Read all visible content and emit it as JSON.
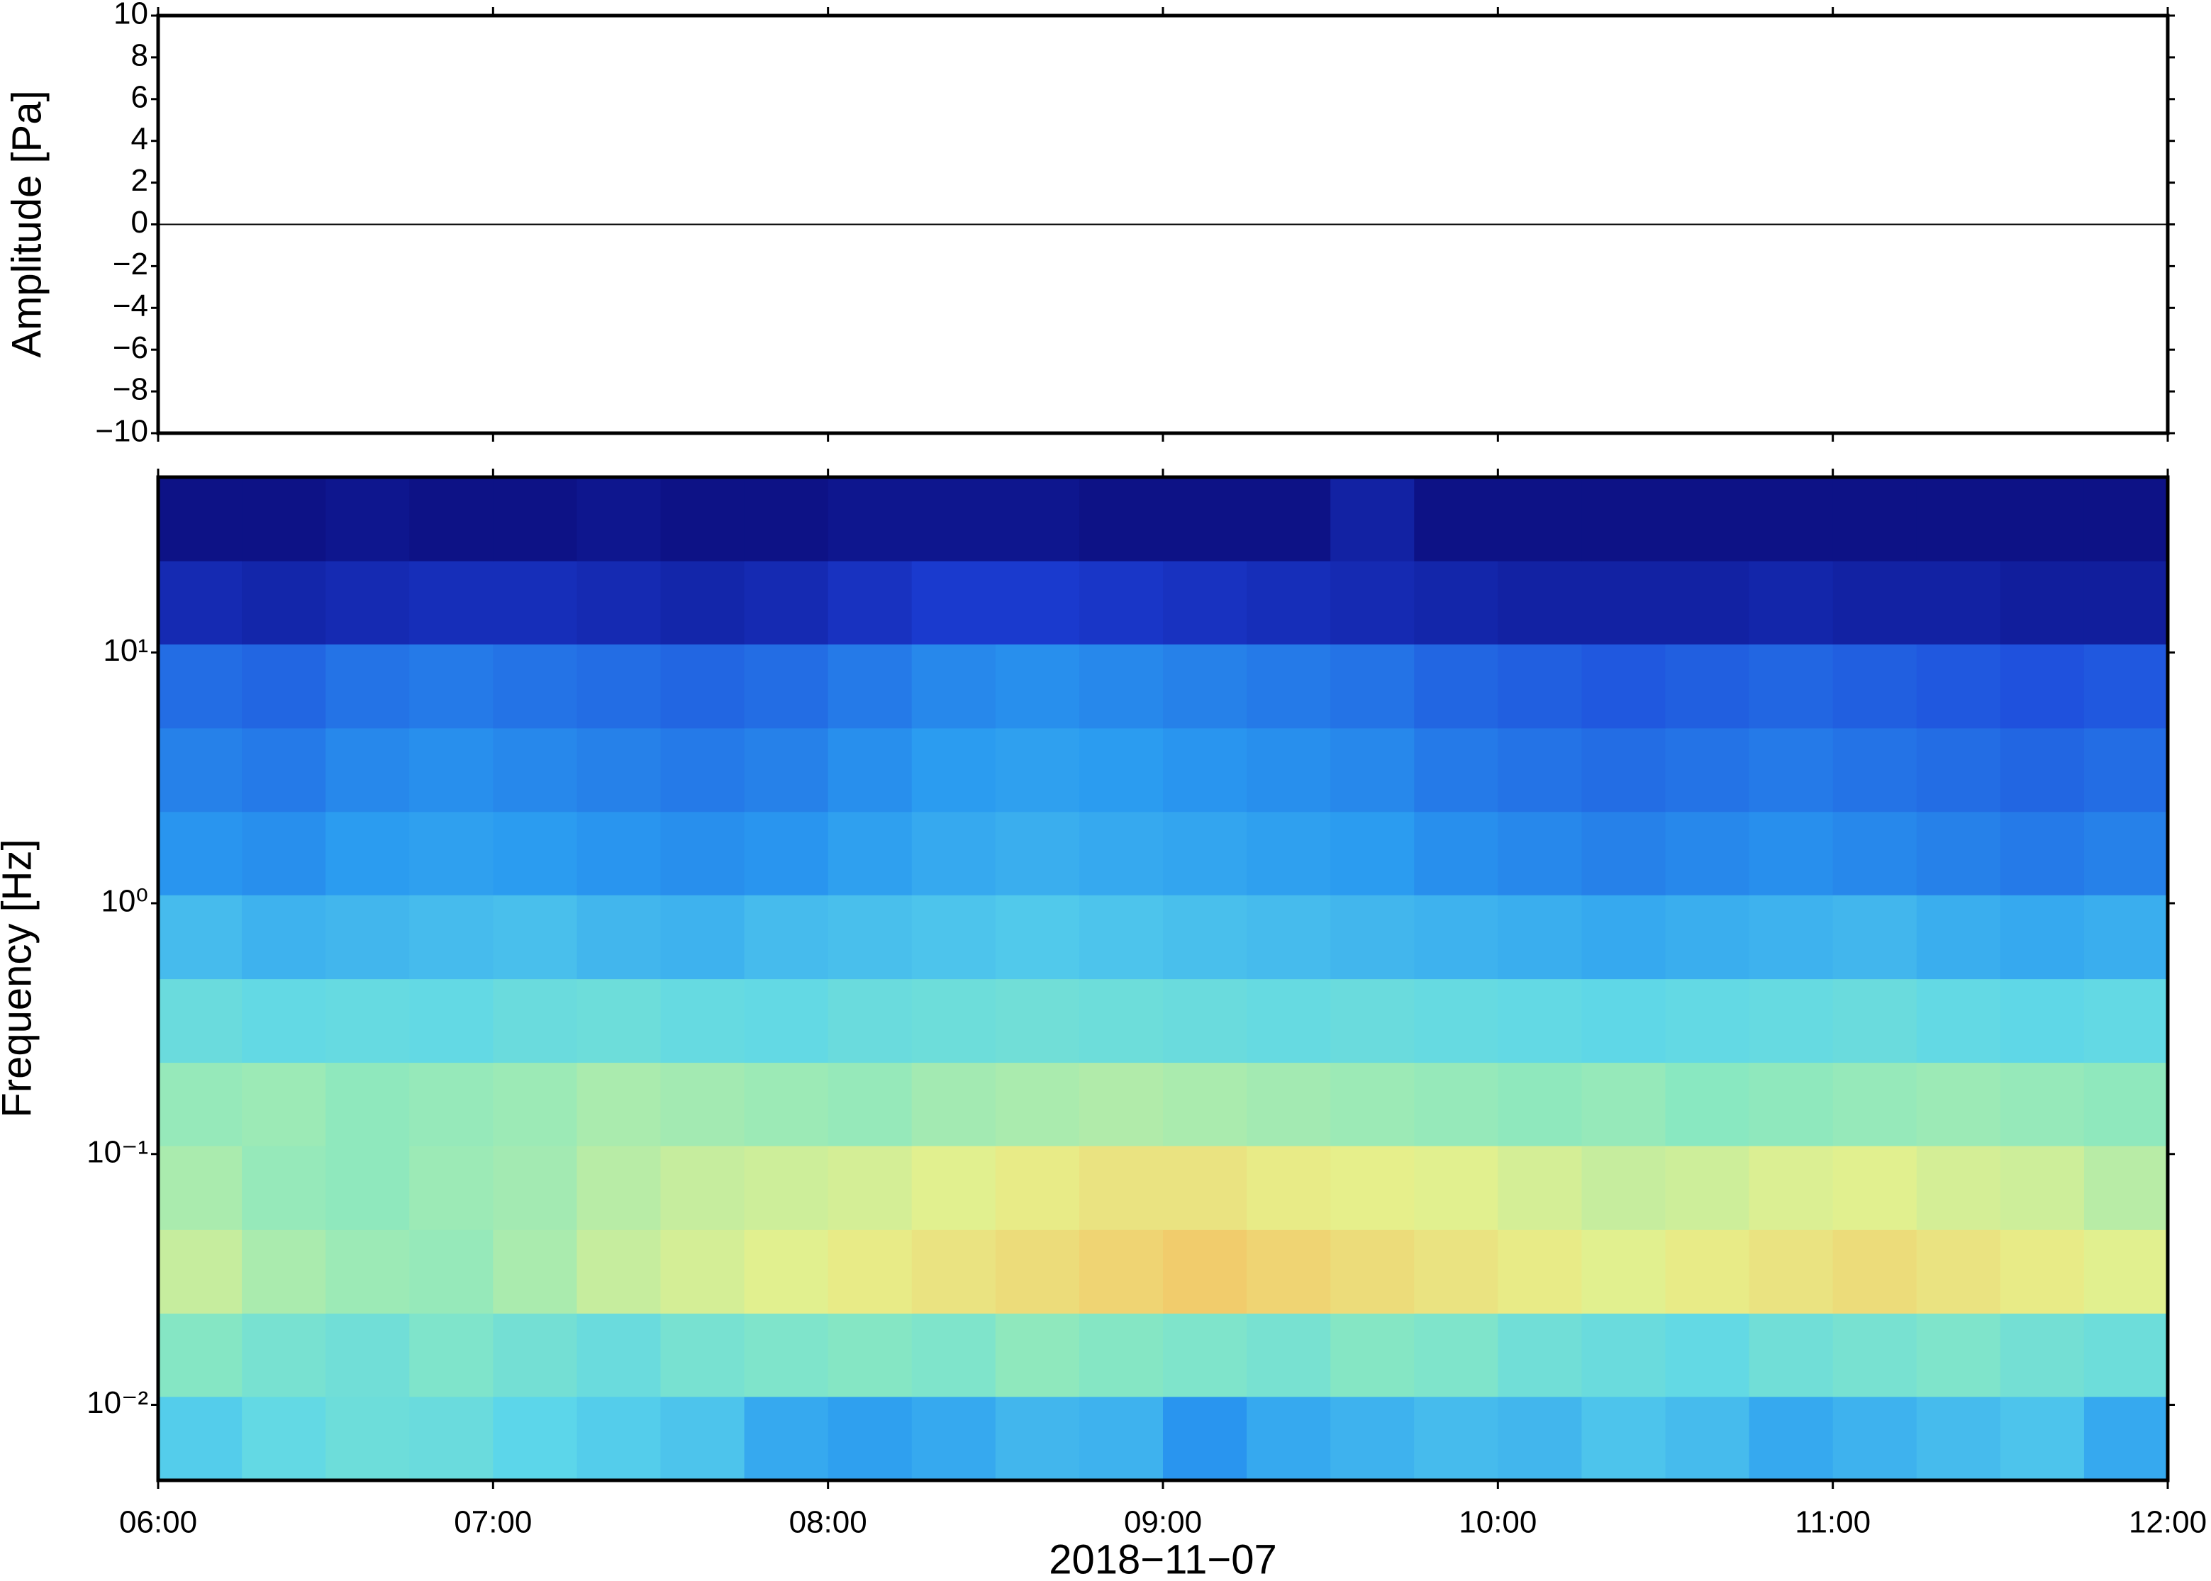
{
  "chart_data": [
    {
      "type": "line",
      "ylabel": "Amplitude [Pa]",
      "color": "#000000",
      "x": [
        6,
        7,
        8,
        9,
        10,
        11,
        12
      ],
      "values": [
        0,
        0,
        0,
        0,
        0,
        0,
        0
      ],
      "xlim": [
        6,
        12
      ],
      "ylim": [
        -10,
        10
      ],
      "yticks": [
        {
          "value": -10,
          "label": "−10"
        },
        {
          "value": -8,
          "label": "−8"
        },
        {
          "value": -6,
          "label": "−6"
        },
        {
          "value": -4,
          "label": "−4"
        },
        {
          "value": -2,
          "label": "−2"
        },
        0,
        2,
        4,
        6,
        8,
        10
      ]
    },
    {
      "type": "heatmap",
      "ylabel": "Frequency [Hz]",
      "xlabel": "2018−11−07",
      "ylog": true,
      "xlim": [
        6,
        12
      ],
      "ylim": [
        0.005,
        50
      ],
      "xticks": [
        {
          "value": 6,
          "label": "06:00"
        },
        {
          "value": 7,
          "label": "07:00"
        },
        {
          "value": 8,
          "label": "08:00"
        },
        {
          "value": 9,
          "label": "09:00"
        },
        {
          "value": 10,
          "label": "10:00"
        },
        {
          "value": 11,
          "label": "11:00"
        },
        {
          "value": 12,
          "label": "12:00"
        }
      ],
      "yticks": [
        {
          "value": 0.01,
          "label": "10⁻²"
        },
        {
          "value": 0.1,
          "label": "10⁻¹"
        },
        {
          "value": 1,
          "label": "10⁰"
        },
        {
          "value": 10,
          "label": "10¹"
        }
      ],
      "colormap": [
        "#0a0a78",
        "#1c3fd8",
        "#2a9af0",
        "#5cd6ea",
        "#8ae8c0",
        "#e6f08c",
        "#f6bd5e"
      ],
      "zlim": [
        0,
        0.8
      ],
      "xbins": [
        6,
        6.25,
        6.5,
        6.75,
        7,
        7.25,
        7.5,
        7.75,
        8,
        8.25,
        8.5,
        8.75,
        9,
        9.25,
        9.5,
        9.75,
        10,
        10.25,
        10.5,
        10.75,
        11,
        11.25,
        11.5,
        11.75,
        12
      ],
      "ybins": [
        0.005,
        0.0108,
        0.0232,
        0.05,
        0.108,
        0.232,
        0.5,
        1.08,
        2.32,
        5,
        10.8,
        23.2,
        50
      ],
      "z": [
        [
          0.38,
          0.42,
          0.45,
          0.44,
          0.4,
          0.38,
          0.36,
          0.3,
          0.28,
          0.3,
          0.33,
          0.32,
          0.26,
          0.3,
          0.32,
          0.34,
          0.33,
          0.36,
          0.34,
          0.3,
          0.32,
          0.34,
          0.36,
          0.3
        ],
        [
          0.52,
          0.48,
          0.46,
          0.5,
          0.47,
          0.44,
          0.48,
          0.5,
          0.52,
          0.5,
          0.54,
          0.52,
          0.5,
          0.48,
          0.52,
          0.5,
          0.46,
          0.44,
          0.42,
          0.46,
          0.48,
          0.5,
          0.47,
          0.45
        ],
        [
          0.62,
          0.58,
          0.56,
          0.55,
          0.58,
          0.62,
          0.64,
          0.66,
          0.68,
          0.7,
          0.72,
          0.74,
          0.76,
          0.74,
          0.72,
          0.7,
          0.68,
          0.66,
          0.68,
          0.7,
          0.72,
          0.7,
          0.68,
          0.66
        ],
        [
          0.58,
          0.55,
          0.54,
          0.56,
          0.57,
          0.6,
          0.62,
          0.63,
          0.64,
          0.66,
          0.68,
          0.7,
          0.7,
          0.68,
          0.67,
          0.66,
          0.64,
          0.62,
          0.63,
          0.65,
          0.66,
          0.64,
          0.63,
          0.6
        ],
        [
          0.55,
          0.56,
          0.54,
          0.55,
          0.56,
          0.58,
          0.57,
          0.56,
          0.55,
          0.57,
          0.58,
          0.59,
          0.58,
          0.57,
          0.56,
          0.55,
          0.54,
          0.55,
          0.53,
          0.54,
          0.55,
          0.56,
          0.55,
          0.54
        ],
        [
          0.44,
          0.42,
          0.43,
          0.42,
          0.44,
          0.45,
          0.43,
          0.42,
          0.44,
          0.45,
          0.46,
          0.45,
          0.44,
          0.43,
          0.44,
          0.43,
          0.42,
          0.41,
          0.42,
          0.43,
          0.44,
          0.42,
          0.41,
          0.42
        ],
        [
          0.34,
          0.32,
          0.33,
          0.34,
          0.35,
          0.33,
          0.32,
          0.34,
          0.35,
          0.36,
          0.37,
          0.36,
          0.35,
          0.34,
          0.33,
          0.32,
          0.31,
          0.3,
          0.31,
          0.32,
          0.33,
          0.31,
          0.3,
          0.31
        ],
        [
          0.26,
          0.25,
          0.27,
          0.28,
          0.27,
          0.26,
          0.25,
          0.26,
          0.28,
          0.3,
          0.31,
          0.3,
          0.29,
          0.28,
          0.27,
          0.25,
          0.24,
          0.23,
          0.24,
          0.25,
          0.24,
          0.23,
          0.22,
          0.23
        ],
        [
          0.23,
          0.22,
          0.24,
          0.25,
          0.24,
          0.23,
          0.22,
          0.23,
          0.25,
          0.27,
          0.28,
          0.27,
          0.26,
          0.25,
          0.24,
          0.22,
          0.21,
          0.2,
          0.21,
          0.22,
          0.21,
          0.2,
          0.19,
          0.2
        ],
        [
          0.2,
          0.19,
          0.21,
          0.22,
          0.21,
          0.2,
          0.19,
          0.2,
          0.22,
          0.24,
          0.25,
          0.24,
          0.23,
          0.22,
          0.21,
          0.19,
          0.18,
          0.17,
          0.18,
          0.19,
          0.18,
          0.17,
          0.16,
          0.17
        ],
        [
          0.08,
          0.07,
          0.08,
          0.09,
          0.09,
          0.08,
          0.07,
          0.08,
          0.1,
          0.12,
          0.12,
          0.11,
          0.1,
          0.09,
          0.08,
          0.07,
          0.06,
          0.06,
          0.06,
          0.07,
          0.06,
          0.06,
          0.05,
          0.05
        ],
        [
          0.02,
          0.02,
          0.03,
          0.02,
          0.02,
          0.03,
          0.02,
          0.02,
          0.03,
          0.03,
          0.03,
          0.02,
          0.02,
          0.02,
          0.06,
          0.02,
          0.02,
          0.02,
          0.02,
          0.02,
          0.02,
          0.02,
          0.02,
          0.02
        ]
      ]
    }
  ]
}
